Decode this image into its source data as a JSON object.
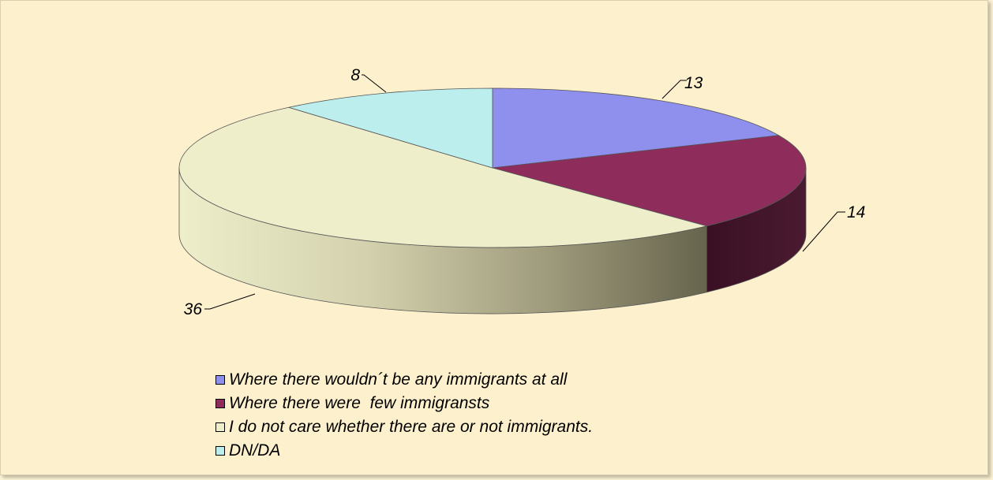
{
  "chart_data": {
    "type": "pie",
    "title": "",
    "three_d": true,
    "slices": [
      {
        "label": "Where there wouldn´t be any immigrants at all",
        "value": 13,
        "color": "#8f8fee",
        "side_color": "#5a5aa8"
      },
      {
        "label": "Where there were  few immigransts",
        "value": 14,
        "color": "#8e2c5c",
        "side_color": "#3d1328"
      },
      {
        "label": "I do not care whether there are or not immigrants.",
        "value": 36,
        "color": "#eeeecb",
        "side_color": "#c8c6a2"
      },
      {
        "label": "DN/DA",
        "value": 8,
        "color": "#bdeeee",
        "side_color": "#7fb0b0"
      }
    ],
    "data_labels": [
      "13",
      "14",
      "36",
      "8"
    ],
    "legend_position": "bottom"
  }
}
